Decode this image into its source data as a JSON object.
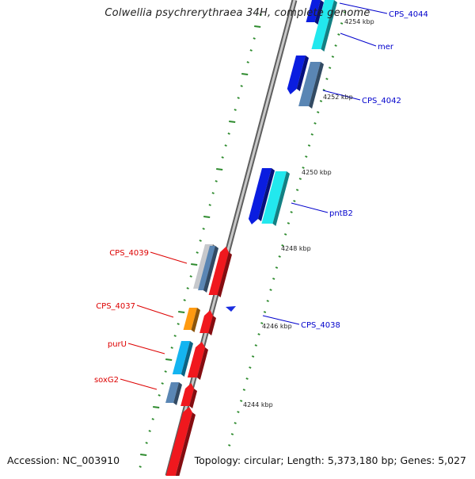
{
  "title": "Colwellia psychrerythraea 34H, complete genome",
  "footer": {
    "accession": "Accession: NC_003910",
    "stats": "Topology: circular; Length: 5,373,180 bp; Genes: 5,027"
  },
  "colors": {
    "backbone": "#8c8c8c",
    "tick": "#2e8b2e",
    "forward_label": "#0000cc",
    "reverse_label": "#dd0000",
    "blue": "#0a1de0",
    "cyan": "#22e8ee",
    "steel": "#5a86b4",
    "red": "#f0181e",
    "orange": "#ff9a10",
    "silver": "#c6c8cc",
    "light_blue": "#14b4f0"
  },
  "kbp_labels": [
    "4244 kbp",
    "4246 kbp",
    "4248 kbp",
    "4250 kbp",
    "4252 kbp",
    "4254 kbp"
  ],
  "forward_gene_labels": [
    "CPS_4044",
    "mer",
    "CPS_4042",
    "pntB2",
    "CPS_4038"
  ],
  "reverse_gene_labels": [
    "CPS_4039",
    "CPS_4037",
    "purU",
    "soxG2"
  ],
  "legend_icons": [
    "strand-marker-icon"
  ]
}
